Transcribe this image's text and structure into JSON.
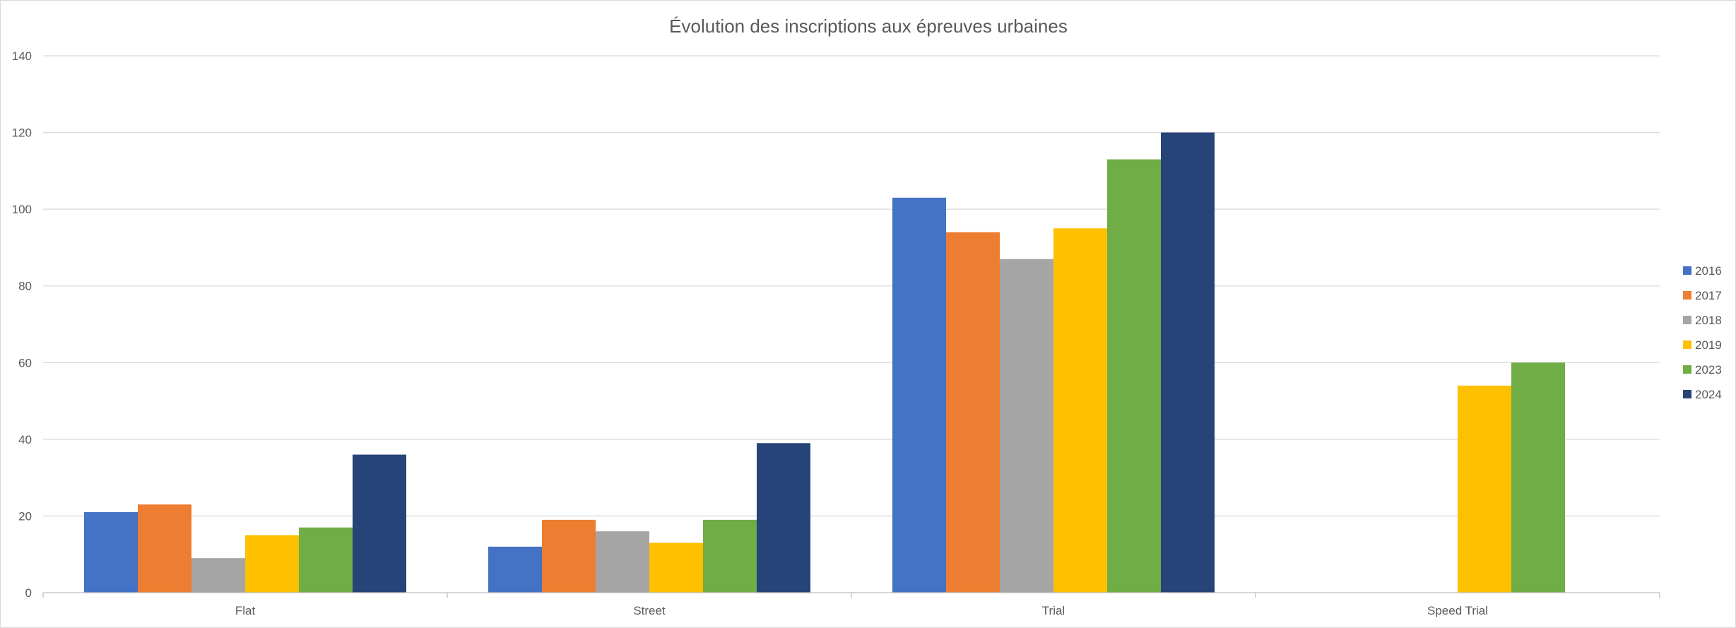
{
  "chart_data": {
    "type": "bar",
    "title": "Évolution des inscriptions aux épreuves urbaines",
    "categories": [
      "Flat",
      "Street",
      "Trial",
      "Speed Trial"
    ],
    "series": [
      {
        "name": "2016",
        "values": [
          21,
          12,
          103,
          null
        ],
        "color": "#4472c4"
      },
      {
        "name": "2017",
        "values": [
          23,
          19,
          94,
          null
        ],
        "color": "#ed7d31"
      },
      {
        "name": "2018",
        "values": [
          9,
          16,
          87,
          null
        ],
        "color": "#a5a5a5"
      },
      {
        "name": "2019",
        "values": [
          15,
          13,
          95,
          54
        ],
        "color": "#ffc000"
      },
      {
        "name": "2023",
        "values": [
          17,
          19,
          113,
          60
        ],
        "color": "#70ad47"
      },
      {
        "name": "2024",
        "values": [
          36,
          39,
          120,
          null
        ],
        "color": "#264478"
      }
    ],
    "ylim": [
      0,
      140
    ],
    "yticks": [
      0,
      20,
      40,
      60,
      80,
      100,
      120,
      140
    ],
    "xlabel": "",
    "ylabel": "",
    "grid": true,
    "legend_position": "right"
  }
}
